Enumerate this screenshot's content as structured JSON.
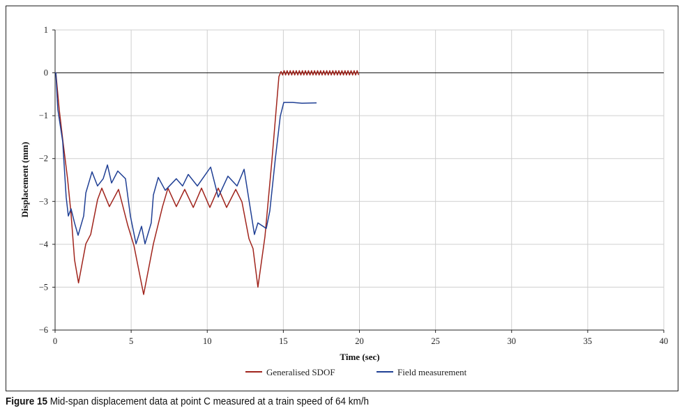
{
  "caption": {
    "label": "Figure 15",
    "text": " Mid-span displacement data at point C measured at a train speed of 64 km/h"
  },
  "chart_data": {
    "type": "line",
    "title": "",
    "xlabel": "Time (sec)",
    "ylabel": "Displacement (mm)",
    "xlim": [
      0,
      40
    ],
    "ylim": [
      -6,
      1
    ],
    "xticks": [
      "0",
      "5",
      "10",
      "15",
      "20",
      "25",
      "30",
      "35",
      "40"
    ],
    "yticks": [
      "1",
      "0",
      "−1",
      "−2",
      "−3",
      "−4",
      "−5",
      "−6"
    ],
    "grid": true,
    "legend_position": "bottom",
    "series": [
      {
        "name": "Generalised SDOF",
        "color": "#a0241c",
        "x": [
          0,
          0.05,
          0.27,
          0.5,
          0.82,
          1.05,
          1.28,
          1.54,
          2.02,
          2.34,
          2.79,
          3.07,
          3.57,
          4.17,
          4.77,
          5.18,
          5.82,
          6.46,
          7.06,
          7.42,
          7.97,
          8.52,
          9.08,
          9.62,
          10.17,
          10.72,
          11.27,
          11.87,
          12.28,
          12.74,
          13.01,
          13.33,
          13.79,
          14.25,
          14.71,
          14.85,
          14.95,
          15.05,
          15.15,
          15.25,
          15.35,
          15.45,
          15.55,
          15.65,
          15.75,
          15.85,
          15.95,
          16.05,
          16.15,
          16.25,
          16.35,
          16.45,
          16.55,
          16.65,
          16.75,
          16.85,
          16.95,
          17.05,
          17.15,
          17.25,
          17.35,
          17.45,
          17.55,
          17.65,
          17.75,
          17.85,
          17.95,
          18.05,
          18.15,
          18.25,
          18.35,
          18.45,
          18.55,
          18.65,
          18.75,
          18.85,
          18.95,
          19.05,
          19.15,
          19.25,
          19.35,
          19.45,
          19.55,
          19.65,
          19.75,
          19.85,
          19.95
        ],
        "y": [
          0,
          0,
          -0.85,
          -1.55,
          -2.47,
          -3.29,
          -4.36,
          -4.9,
          -3.99,
          -3.77,
          -2.96,
          -2.69,
          -3.12,
          -2.72,
          -3.55,
          -4.03,
          -5.17,
          -3.99,
          -3.12,
          -2.69,
          -3.12,
          -2.72,
          -3.14,
          -2.69,
          -3.14,
          -2.69,
          -3.14,
          -2.72,
          -3.01,
          -3.87,
          -4.1,
          -5.0,
          -3.82,
          -2.04,
          -0.09,
          0.03,
          -0.05,
          0.05,
          -0.05,
          0.05,
          -0.05,
          0.05,
          -0.05,
          0.05,
          -0.05,
          0.05,
          -0.05,
          0.05,
          -0.05,
          0.05,
          -0.05,
          0.05,
          -0.05,
          0.05,
          -0.05,
          0.05,
          -0.05,
          0.05,
          -0.05,
          0.05,
          -0.05,
          0.05,
          -0.05,
          0.05,
          -0.05,
          0.05,
          -0.05,
          0.05,
          -0.05,
          0.05,
          -0.05,
          0.05,
          -0.05,
          0.05,
          -0.05,
          0.05,
          -0.05,
          0.05,
          -0.05,
          0.05,
          -0.05,
          0.05,
          -0.05,
          0.05,
          -0.05,
          0.05,
          -0.05
        ]
      },
      {
        "name": "Field measurement",
        "color": "#1f3f94",
        "x": [
          0,
          0.05,
          0.18,
          0.5,
          0.73,
          0.87,
          1.05,
          1.28,
          1.51,
          1.88,
          2.02,
          2.43,
          2.79,
          3.16,
          3.44,
          3.71,
          4.12,
          4.63,
          4.95,
          5.32,
          5.68,
          5.91,
          6.32,
          6.46,
          6.78,
          7.24,
          7.97,
          8.38,
          8.75,
          9.35,
          10.22,
          10.72,
          11.36,
          11.96,
          12.42,
          13.1,
          13.33,
          13.88,
          14.11,
          14.48,
          14.8,
          15.03,
          15.62,
          16.22,
          17.18
        ],
        "y": [
          0,
          0,
          -0.85,
          -1.6,
          -2.9,
          -3.34,
          -3.17,
          -3.5,
          -3.79,
          -3.34,
          -2.8,
          -2.31,
          -2.64,
          -2.47,
          -2.15,
          -2.57,
          -2.29,
          -2.47,
          -3.34,
          -3.99,
          -3.58,
          -3.99,
          -3.5,
          -2.85,
          -2.44,
          -2.74,
          -2.47,
          -2.64,
          -2.37,
          -2.64,
          -2.2,
          -2.9,
          -2.41,
          -2.64,
          -2.25,
          -3.77,
          -3.5,
          -3.63,
          -3.22,
          -1.99,
          -1.01,
          -0.69,
          -0.69,
          -0.71,
          -0.7
        ]
      }
    ]
  }
}
